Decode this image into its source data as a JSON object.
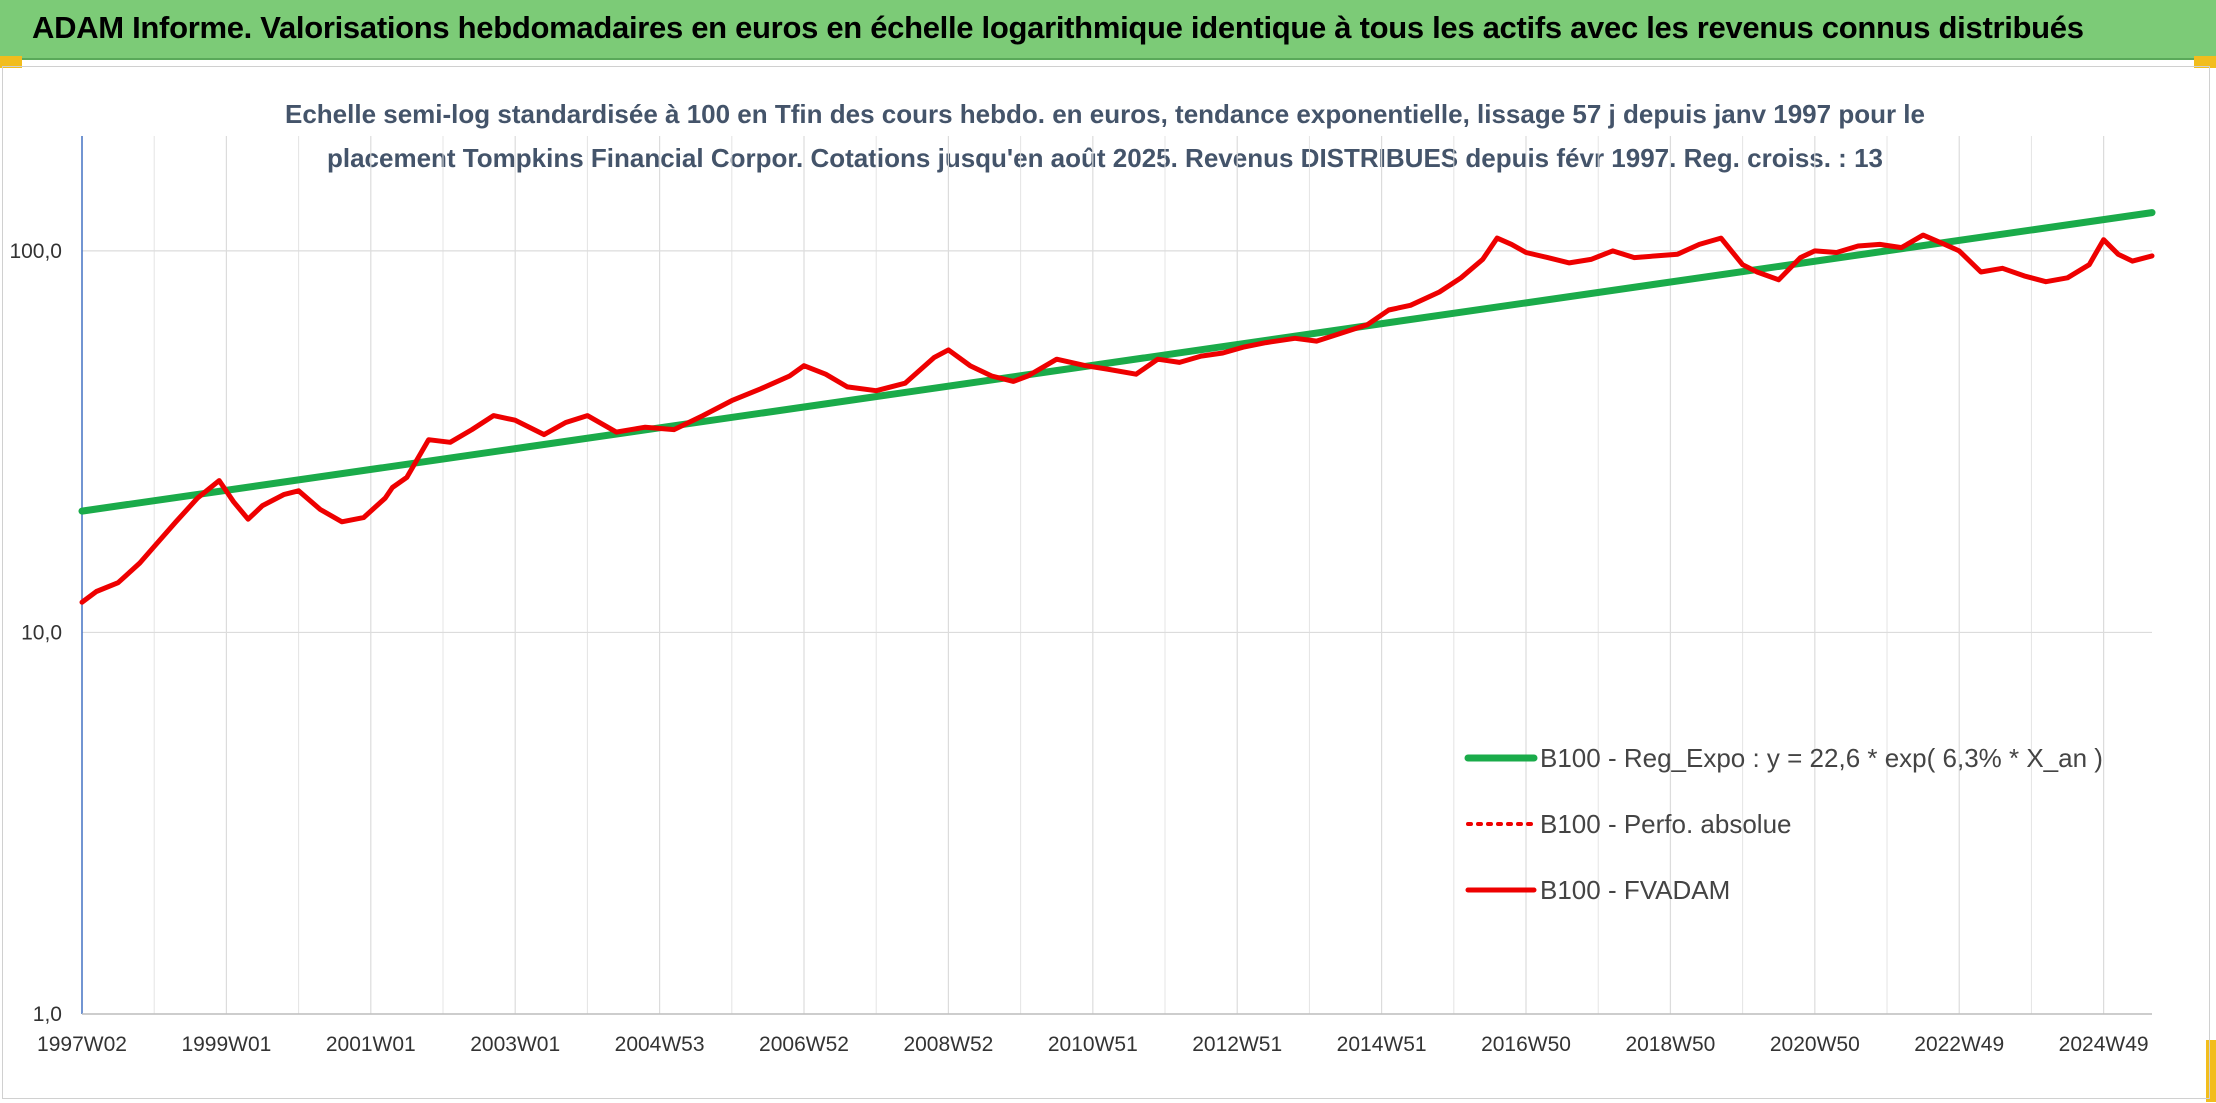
{
  "banner": {
    "title": "ADAM Informe. Valorisations hebdomadaires en euros en échelle logarithmique identique à tous les actifs avec les revenus connus distribués"
  },
  "colors": {
    "banner": "#7ccb77",
    "corner": "#f2bd1d",
    "trend": "#1aab4a",
    "price": "#ee0000",
    "subtitle": "#44546a"
  },
  "chart_data": {
    "type": "line",
    "title_lines": [
      "Echelle semi-log standardisée à 100 en Tfin des cours hebdo. en euros, tendance exponentielle, lissage 57 j depuis janv 1997 pour le",
      "placement Tompkins Financial Corpor. Cotations jusqu'en août 2025. Revenus DISTRIBUES depuis févr 1997. Reg. croiss. : 13"
    ],
    "y_scale": "log",
    "ylim": [
      1,
      200
    ],
    "y_ticks": [
      {
        "value": 1,
        "label": "1,0"
      },
      {
        "value": 10,
        "label": "10,0"
      },
      {
        "value": 100,
        "label": "100,0"
      }
    ],
    "xlim": [
      1997.0,
      2025.67
    ],
    "x_ticks": [
      {
        "value": 1997.0,
        "label": "1997W02"
      },
      {
        "value": 1999.0,
        "label": "1999W01"
      },
      {
        "value": 2001.0,
        "label": "2001W01"
      },
      {
        "value": 2003.0,
        "label": "2003W01"
      },
      {
        "value": 2005.0,
        "label": "2004W53"
      },
      {
        "value": 2007.0,
        "label": "2006W52"
      },
      {
        "value": 2009.0,
        "label": "2008W52"
      },
      {
        "value": 2011.0,
        "label": "2010W51"
      },
      {
        "value": 2013.0,
        "label": "2012W51"
      },
      {
        "value": 2015.0,
        "label": "2014W51"
      },
      {
        "value": 2017.0,
        "label": "2016W50"
      },
      {
        "value": 2019.0,
        "label": "2018W50"
      },
      {
        "value": 2021.0,
        "label": "2020W50"
      },
      {
        "value": 2023.0,
        "label": "2022W49"
      },
      {
        "value": 2025.0,
        "label": "2024W49"
      }
    ],
    "grid": "vertical",
    "legend_position": "bottom-right",
    "series": [
      {
        "name": "B100 - Reg_Expo : y = 22,6 * exp( 6,3% *  X_an )",
        "style": "solid-thick",
        "color": "#1aab4a",
        "x": [
          1997.0,
          2025.67
        ],
        "y": [
          20.8,
          126.0
        ]
      },
      {
        "name": "B100 - Perfo. absolue",
        "style": "dotted",
        "color": "#ee0000",
        "x": [],
        "y": []
      },
      {
        "name": "B100 - FVADAM",
        "style": "solid",
        "color": "#ee0000",
        "x": [
          1997.0,
          1997.2,
          1997.5,
          1997.8,
          1998.0,
          1998.3,
          1998.6,
          1998.9,
          1999.1,
          1999.3,
          1999.5,
          1999.8,
          2000.0,
          2000.3,
          2000.6,
          2000.9,
          2001.2,
          2001.3,
          2001.5,
          2001.8,
          2002.1,
          2002.4,
          2002.7,
          2003.0,
          2003.4,
          2003.7,
          2004.0,
          2004.4,
          2004.8,
          2005.2,
          2005.6,
          2006.0,
          2006.4,
          2006.8,
          2007.0,
          2007.3,
          2007.6,
          2008.0,
          2008.4,
          2008.8,
          2009.0,
          2009.3,
          2009.6,
          2009.9,
          2010.1,
          2010.5,
          2010.9,
          2011.2,
          2011.6,
          2011.9,
          2012.2,
          2012.5,
          2012.8,
          2013.1,
          2013.4,
          2013.8,
          2014.1,
          2014.4,
          2014.8,
          2015.1,
          2015.4,
          2015.8,
          2016.1,
          2016.4,
          2016.6,
          2016.8,
          2017.0,
          2017.3,
          2017.6,
          2017.9,
          2018.2,
          2018.5,
          2018.8,
          2019.1,
          2019.4,
          2019.7,
          2020.0,
          2020.2,
          2020.5,
          2020.8,
          2021.0,
          2021.3,
          2021.6,
          2021.9,
          2022.2,
          2022.5,
          2022.8,
          2023.0,
          2023.3,
          2023.6,
          2023.9,
          2024.2,
          2024.5,
          2024.8,
          2025.0,
          2025.2,
          2025.4,
          2025.67
        ],
        "y": [
          12.0,
          12.8,
          13.5,
          15.2,
          16.8,
          19.5,
          22.5,
          25.0,
          22.0,
          19.8,
          21.5,
          23.0,
          23.5,
          21.0,
          19.5,
          20.0,
          22.5,
          24.0,
          25.5,
          32.0,
          31.5,
          34.0,
          37.0,
          36.0,
          33.0,
          35.5,
          37.0,
          33.5,
          34.5,
          34.0,
          37.0,
          40.5,
          43.5,
          47.0,
          50.0,
          47.5,
          44.0,
          43.0,
          45.0,
          52.5,
          55.0,
          50.0,
          47.0,
          45.5,
          47.0,
          52.0,
          50.0,
          49.0,
          47.5,
          52.0,
          51.0,
          53.0,
          54.0,
          56.0,
          57.5,
          59.0,
          58.0,
          60.5,
          64.0,
          70.0,
          72.0,
          78.0,
          85.0,
          95.0,
          108.0,
          104.0,
          99.0,
          96.0,
          93.0,
          95.0,
          100.0,
          96.0,
          97.0,
          98.0,
          104.0,
          108.0,
          92.0,
          88.0,
          84.0,
          96.0,
          100.0,
          99.0,
          103.0,
          104.0,
          102.0,
          110.0,
          104.0,
          100.0,
          88.0,
          90.0,
          86.0,
          83.0,
          85.0,
          92.0,
          107.0,
          98.0,
          94.0,
          97.0
        ]
      }
    ]
  }
}
